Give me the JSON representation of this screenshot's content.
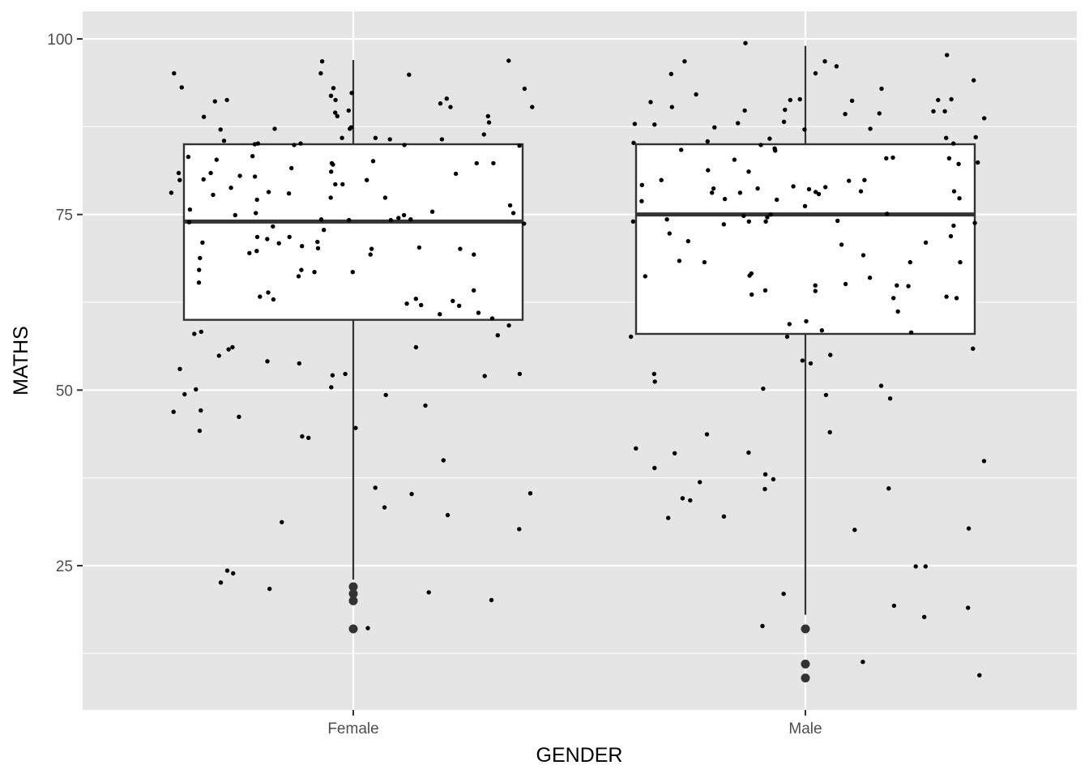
{
  "chart_data": {
    "type": "boxplot",
    "xlabel": "GENDER",
    "ylabel": "MATHS",
    "categories": [
      "Female",
      "Male"
    ],
    "y_ticks": [
      25,
      50,
      75,
      100
    ],
    "ylim": [
      4,
      103
    ],
    "grid": true,
    "panel_background": "#e5e5e5",
    "grid_color": "#ffffff",
    "box_fill": "#ffffff",
    "box_stroke": "#333333",
    "point_color": "#000000",
    "boxes": [
      {
        "category": "Female",
        "q1": 60,
        "median": 74,
        "q3": 85,
        "whisker_low": 23,
        "whisker_high": 97,
        "outliers": [
          22,
          21,
          20,
          16
        ]
      },
      {
        "category": "Male",
        "q1": 58,
        "median": 75,
        "q3": 85,
        "whisker_low": 18,
        "whisker_high": 99,
        "outliers": [
          16,
          11,
          9
        ]
      }
    ],
    "jitter_points": [
      {
        "category": "Female",
        "values": [
          87.2,
          85.9,
          77.8,
          63.3,
          52.1,
          44.6,
          44.2,
          20.1,
          49.3,
          95.1,
          87.2,
          80.8,
          74.3,
          65.3,
          66.8,
          69.8,
          56.1,
          55.8,
          36.1,
          89.8,
          74.9,
          73.9,
          75.2,
          92.9,
          91.1,
          82.1,
          84.8,
          80.5,
          72.8,
          70.1,
          63.0,
          62.9,
          23.9,
          35.3,
          93.0,
          75.2,
          69.3,
          81.6,
          91.3,
          62.7,
          53.8,
          66.2,
          68.8,
          96.9,
          85.1,
          82.3,
          79.3,
          77.1,
          74.2,
          71.1,
          32.2,
          94.9,
          87.1,
          83.3,
          89.5,
          88.9,
          83.2,
          74.3,
          70.3,
          62.3,
          30.2,
          71.8,
          77.4,
          92.3,
          91.9,
          82.3,
          79.3,
          81.1,
          71.5,
          71.8,
          85.7,
          54.9,
          21.7,
          90.3,
          86.4,
          73.7,
          59.2,
          52.0,
          40.0,
          84.9,
          82.6,
          79.9,
          78.0,
          67.1,
          69.5,
          66.8,
          62.1,
          60.8,
          63.9,
          52.3,
          46.9,
          43.4,
          33.3,
          82.3,
          80.0,
          90.3,
          89.0,
          88.1,
          77.4,
          85.9,
          82.8,
          70.1,
          57.8,
          54.1,
          53.0,
          24.3,
          21.2,
          47.8,
          35.2,
          89.0,
          85.0,
          64.2,
          56.1,
          49.4,
          47.1,
          80.9,
          79.9,
          69.3,
          61.0,
          85.5,
          87.4,
          75.7,
          73.3,
          74.2,
          58.0,
          85.1,
          80.4,
          70.9,
          62.0,
          22.6,
          78.8,
          78.1,
          74.5,
          71.0,
          70.2,
          80.9,
          52.3,
          96.8,
          95.1,
          91.5,
          91.3,
          90.8,
          84.9,
          76.3,
          75.4,
          74.9,
          78.2,
          70.5,
          67.1,
          60.2,
          58.3,
          50.1,
          46.2,
          31.2,
          93.1,
          85.7,
          50.4,
          43.2,
          16.1
        ]
      },
      {
        "category": "Male",
        "values": [
          85.1,
          78.2,
          77.1,
          74.3,
          71.9,
          79.9,
          76.2,
          73.4,
          87.2,
          91.3,
          86.0,
          85.9,
          84.4,
          87.1,
          89.4,
          68.2,
          63.1,
          58.5,
          39.9,
          30.1,
          24.9,
          21.0,
          91.0,
          82.4,
          78.9,
          78.3,
          74.0,
          64.9,
          64.8,
          59.8,
          89.9,
          89.7,
          83.0,
          79.2,
          78.7,
          79.0,
          88.7,
          69.2,
          68.4,
          66.0,
          96.8,
          92.1,
          95.1,
          88.0,
          57.6,
          55.9,
          53.8,
          41.7,
          35.9,
          34.3,
          11.3,
          81.3,
          83.1,
          82.8,
          78.3,
          70.7,
          74.6,
          71.0,
          71.2,
          41.1,
          84.1,
          83.0,
          55.0,
          52.3,
          34.6,
          91.4,
          87.4,
          85.8,
          78.6,
          74.8,
          74.0,
          66.2,
          63.1,
          59.4,
          96.8,
          91.4,
          79.9,
          75.0,
          68.2,
          64.2,
          87.9,
          72.3,
          36.0,
          89.7,
          85.2,
          77.9,
          77.2,
          74.0,
          85.4,
          48.8,
          54.2,
          43.7,
          91.2,
          63.3,
          30.3,
          16.4,
          19.0,
          24.9,
          37.3,
          38.9,
          36.9,
          90.3,
          75.1,
          74.1,
          73.8,
          73.6,
          63.6,
          78.1,
          84.2,
          82.2,
          79.8,
          58.2,
          50.6,
          32.0,
          96.1,
          95.0,
          92.9,
          94.1,
          89.3,
          89.8,
          99.4,
          49.3,
          44.0,
          31.8,
          38.0,
          17.7,
          19.3,
          64.1,
          64.9,
          65.1,
          50.2,
          51.2,
          41.0,
          84.9,
          77.3,
          61.2,
          68.2,
          57.6,
          91.3,
          88.2,
          87.8,
          97.7,
          81.1,
          78.7,
          78.1,
          76.9,
          66.6,
          66.3,
          9.4
        ]
      }
    ]
  }
}
